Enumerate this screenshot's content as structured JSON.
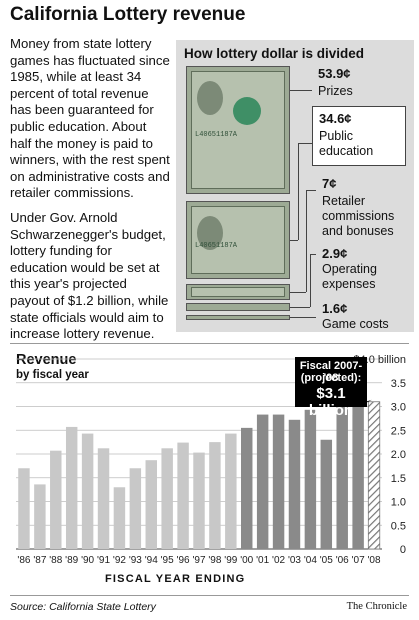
{
  "title": "California Lottery revenue",
  "intro": {
    "paragraph1": "Money from state lottery games has fluctuated since 1985, while at least 34 percent of total revenue has been guaranteed for public education. About half the money is paid to winners, with the rest spent on administrative costs and retailer commissions.",
    "paragraph2": "Under Gov. Arnold Schwarzenegger's budget, lottery funding for education would be set at this year's projected payout of $1.2 billion, while state officials would aim to increase lottery revenue."
  },
  "breakdown": {
    "title": "How lottery dollar is divided",
    "bill_serial": "L40651187A",
    "items": [
      {
        "value": "53.9¢",
        "label_lines": [
          "Prizes"
        ]
      },
      {
        "value": "34.6¢",
        "label_lines": [
          "Public",
          "education"
        ]
      },
      {
        "value": "7¢",
        "label_lines": [
          "Retailer",
          "commissions",
          "and bonuses"
        ]
      },
      {
        "value": "2.9¢",
        "label_lines": [
          "Operating",
          "expenses"
        ]
      },
      {
        "value": "1.6¢",
        "label_lines": [
          "Game costs"
        ]
      }
    ]
  },
  "chart_data": {
    "type": "bar",
    "title": "Revenue",
    "subtitle": "by fiscal year",
    "xlabel": "FISCAL YEAR ENDING",
    "ylabel": "",
    "ylim": [
      0,
      4.0
    ],
    "ytick_labels": [
      "$4.0 billion",
      "3.5",
      "3.0",
      "2.5",
      "2.0",
      "1.5",
      "1.0",
      "0.5",
      "0"
    ],
    "categories": [
      "'86",
      "'87",
      "'88",
      "'89",
      "'90",
      "'91",
      "'92",
      "'93",
      "'94",
      "'95",
      "'96",
      "'97",
      "'98",
      "'99",
      "'00",
      "'01",
      "'02",
      "'03",
      "'04",
      "'05",
      "'06",
      "'07",
      "'08"
    ],
    "values": [
      1.7,
      1.36,
      2.07,
      2.57,
      2.43,
      2.12,
      1.3,
      1.7,
      1.87,
      2.12,
      2.24,
      2.03,
      2.25,
      2.43,
      2.55,
      2.83,
      2.83,
      2.72,
      2.93,
      2.3,
      3.43,
      3.22,
      3.1
    ],
    "colors": {
      "pre_2000": "#c8c8c8",
      "from_2000": "#8a8a8a",
      "projected": "hatched"
    },
    "grid": true,
    "annotation": {
      "line1": "Fiscal 2007-'08",
      "line2": "(projected):",
      "line3": "$3.1 billion"
    }
  },
  "footer": {
    "source": "Source: California State Lottery",
    "credit": "The Chronicle"
  }
}
